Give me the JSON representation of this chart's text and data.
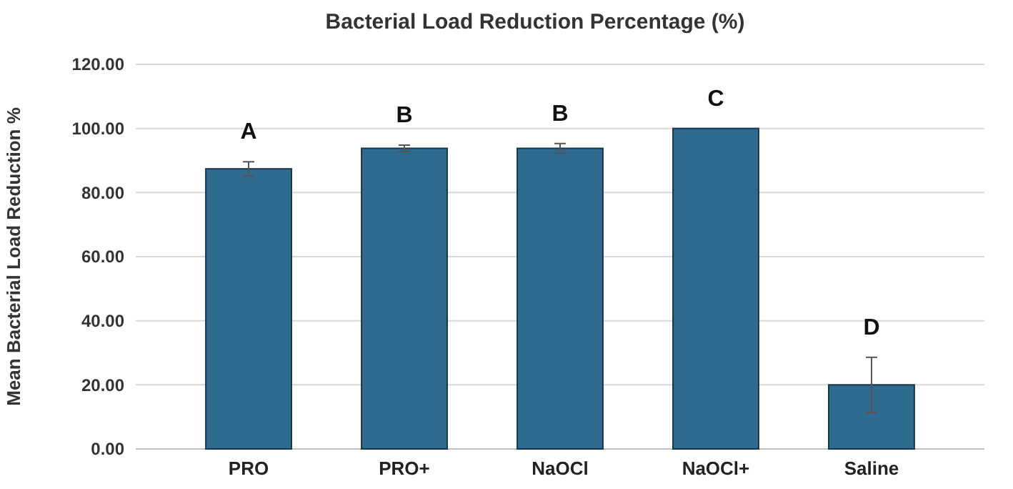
{
  "chart_data": {
    "type": "bar",
    "title": "Bacterial Load Reduction Percentage (%)",
    "ylabel": "Mean Bacterial Load Reduction %",
    "categories": [
      "PRO",
      "PRO+",
      "NaOCl",
      "NaOCl+",
      "Saline"
    ],
    "values": [
      87.4,
      93.8,
      93.8,
      100,
      20
    ],
    "errors": [
      2.2,
      1,
      1.5,
      0,
      8.6
    ],
    "color": "#2f6a8f",
    "ylim": [
      0,
      120
    ],
    "yticks": [
      {
        "value": 0,
        "label": "0.00"
      },
      {
        "value": 20,
        "label": "20.00"
      },
      {
        "value": 40,
        "label": "40.00"
      },
      {
        "value": 60,
        "label": "60.00"
      },
      {
        "value": 80,
        "label": "80.00"
      },
      {
        "value": 100,
        "label": "100.00"
      },
      {
        "value": 120,
        "label": "120.00"
      }
    ],
    "grid": "y",
    "annotations": [
      "A",
      "B",
      "B",
      "C",
      "D"
    ]
  }
}
